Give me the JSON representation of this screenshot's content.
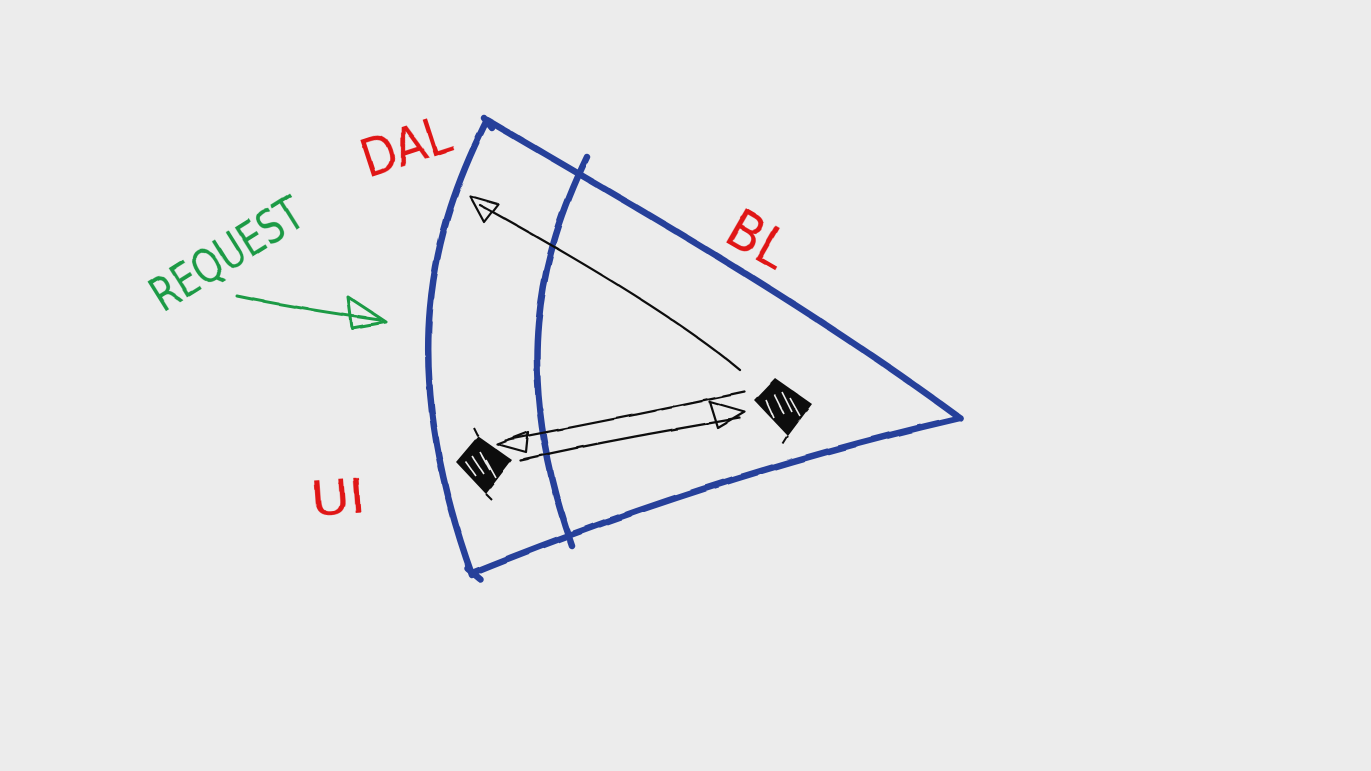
{
  "labels": {
    "dal": "DAL",
    "bl": "BL",
    "ui": "UI",
    "request": "REQUEST"
  },
  "colors": {
    "background": "#ececec",
    "outline": "#27409a",
    "layer_label": "#e01616",
    "request": "#1a9a45",
    "arrows": "#111111"
  }
}
